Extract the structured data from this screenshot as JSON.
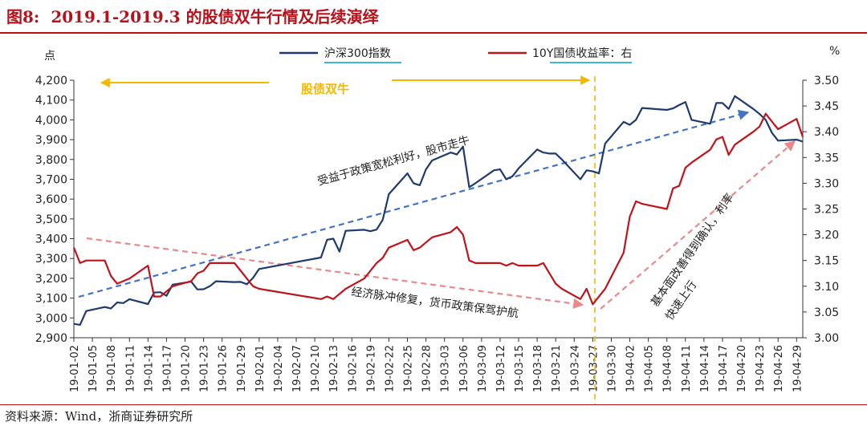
{
  "figure": {
    "label": "图8:",
    "title": "2019.1-2019.3 的股债双牛行情及后续演绎",
    "source": "资料来源：Wind，浙商证券研究所"
  },
  "chart_data": {
    "type": "line",
    "left_unit": "点",
    "right_unit": "%",
    "legend": [
      "沪深300指数",
      "10Y国债收益率：右"
    ],
    "left_axis": {
      "ylim": [
        2900,
        4200
      ],
      "ticks": [
        "2,900",
        "3,000",
        "3,100",
        "3,200",
        "3,300",
        "3,400",
        "3,500",
        "3,600",
        "3,700",
        "3,800",
        "3,900",
        "4,000",
        "4,100",
        "4,200"
      ]
    },
    "right_axis": {
      "ylim": [
        3.0,
        3.5
      ],
      "ticks": [
        "3.00",
        "3.05",
        "3.10",
        "3.15",
        "3.20",
        "3.25",
        "3.30",
        "3.35",
        "3.40",
        "3.45",
        "3.50"
      ]
    },
    "x_ticks": [
      "19-01-02",
      "19-01-05",
      "19-01-08",
      "19-01-11",
      "19-01-14",
      "19-01-17",
      "19-01-20",
      "19-01-23",
      "19-01-26",
      "19-01-29",
      "19-02-01",
      "19-02-04",
      "19-02-07",
      "19-02-10",
      "19-02-13",
      "19-02-16",
      "19-02-19",
      "19-02-22",
      "19-02-25",
      "19-02-28",
      "19-03-03",
      "19-03-06",
      "19-03-09",
      "19-03-12",
      "19-03-15",
      "19-03-18",
      "19-03-21",
      "19-03-24",
      "19-03-27",
      "19-03-30",
      "19-04-02",
      "19-04-05",
      "19-04-08",
      "19-04-11",
      "19-04-14",
      "19-04-17",
      "19-04-20",
      "19-04-23",
      "19-04-26",
      "19-04-29"
    ],
    "series": [
      {
        "name": "沪深300指数",
        "axis": "left",
        "color": "#1f3a6e",
        "x": [
          "19-01-02",
          "19-01-03",
          "19-01-04",
          "19-01-07",
          "19-01-08",
          "19-01-09",
          "19-01-10",
          "19-01-11",
          "19-01-14",
          "19-01-15",
          "19-01-16",
          "19-01-17",
          "19-01-18",
          "19-01-21",
          "19-01-22",
          "19-01-23",
          "19-01-24",
          "19-01-25",
          "19-01-28",
          "19-01-29",
          "19-01-30",
          "19-01-31",
          "19-02-01",
          "19-02-11",
          "19-02-12",
          "19-02-13",
          "19-02-14",
          "19-02-15",
          "19-02-18",
          "19-02-19",
          "19-02-20",
          "19-02-21",
          "19-02-22",
          "19-02-25",
          "19-02-26",
          "19-02-27",
          "19-02-28",
          "19-03-01",
          "19-03-04",
          "19-03-05",
          "19-03-06",
          "19-03-07",
          "19-03-08",
          "19-03-11",
          "19-03-12",
          "19-03-13",
          "19-03-14",
          "19-03-15",
          "19-03-18",
          "19-03-19",
          "19-03-20",
          "19-03-21",
          "19-03-22",
          "19-03-25",
          "19-03-26",
          "19-03-27",
          "19-03-28",
          "19-03-29",
          "19-04-01",
          "19-04-02",
          "19-04-03",
          "19-04-04",
          "19-04-08",
          "19-04-09",
          "19-04-10",
          "19-04-11",
          "19-04-12",
          "19-04-15",
          "19-04-16",
          "19-04-17",
          "19-04-18",
          "19-04-19",
          "19-04-22",
          "19-04-23",
          "19-04-24",
          "19-04-25",
          "19-04-26",
          "19-04-29",
          "19-04-30"
        ],
        "values": [
          2970,
          2965,
          3035,
          3055,
          3048,
          3078,
          3075,
          3095,
          3070,
          3128,
          3130,
          3112,
          3168,
          3183,
          3144,
          3145,
          3160,
          3185,
          3181,
          3182,
          3170,
          3202,
          3247,
          3305,
          3395,
          3400,
          3335,
          3440,
          3445,
          3438,
          3446,
          3495,
          3625,
          3730,
          3680,
          3670,
          3750,
          3795,
          3835,
          3825,
          3865,
          3660,
          3680,
          3745,
          3750,
          3700,
          3715,
          3755,
          3850,
          3835,
          3830,
          3830,
          3800,
          3700,
          3745,
          3740,
          3730,
          3880,
          3990,
          3975,
          4000,
          4060,
          4050,
          4058,
          4075,
          4090,
          4000,
          3980,
          4085,
          4085,
          4055,
          4120,
          4055,
          4030,
          4000,
          3935,
          3895,
          3900,
          3890
        ]
      },
      {
        "name": "10Y国债收益率：右",
        "axis": "right",
        "color": "#c0141c",
        "x": [
          "19-01-02",
          "19-01-03",
          "19-01-04",
          "19-01-07",
          "19-01-08",
          "19-01-09",
          "19-01-10",
          "19-01-11",
          "19-01-14",
          "19-01-15",
          "19-01-16",
          "19-01-17",
          "19-01-18",
          "19-01-21",
          "19-01-22",
          "19-01-23",
          "19-01-24",
          "19-01-25",
          "19-01-28",
          "19-01-29",
          "19-01-30",
          "19-01-31",
          "19-02-01",
          "19-02-11",
          "19-02-12",
          "19-02-13",
          "19-02-14",
          "19-02-15",
          "19-02-18",
          "19-02-19",
          "19-02-20",
          "19-02-21",
          "19-02-22",
          "19-02-25",
          "19-02-26",
          "19-02-27",
          "19-02-28",
          "19-03-01",
          "19-03-04",
          "19-03-05",
          "19-03-06",
          "19-03-07",
          "19-03-08",
          "19-03-11",
          "19-03-12",
          "19-03-13",
          "19-03-14",
          "19-03-15",
          "19-03-18",
          "19-03-19",
          "19-03-20",
          "19-03-21",
          "19-03-22",
          "19-03-25",
          "19-03-26",
          "19-03-27",
          "19-03-28",
          "19-03-29",
          "19-04-01",
          "19-04-02",
          "19-04-03",
          "19-04-04",
          "19-04-08",
          "19-04-09",
          "19-04-10",
          "19-04-11",
          "19-04-12",
          "19-04-15",
          "19-04-16",
          "19-04-17",
          "19-04-18",
          "19-04-19",
          "19-04-22",
          "19-04-23",
          "19-04-24",
          "19-04-25",
          "19-04-26",
          "19-04-29",
          "19-04-30"
        ],
        "values": [
          3.175,
          3.145,
          3.15,
          3.15,
          3.12,
          3.105,
          3.11,
          3.115,
          3.14,
          3.08,
          3.08,
          3.09,
          3.1,
          3.11,
          3.125,
          3.13,
          3.145,
          3.145,
          3.145,
          3.13,
          3.115,
          3.1,
          3.095,
          3.075,
          3.08,
          3.075,
          3.085,
          3.095,
          3.115,
          3.13,
          3.145,
          3.155,
          3.175,
          3.19,
          3.17,
          3.175,
          3.185,
          3.195,
          3.205,
          3.215,
          3.2,
          3.15,
          3.145,
          3.145,
          3.145,
          3.14,
          3.145,
          3.14,
          3.14,
          3.145,
          3.125,
          3.105,
          3.095,
          3.075,
          3.095,
          3.065,
          3.08,
          3.095,
          3.165,
          3.235,
          3.265,
          3.26,
          3.25,
          3.29,
          3.295,
          3.33,
          3.34,
          3.365,
          3.385,
          3.39,
          3.355,
          3.375,
          3.4,
          3.41,
          3.435,
          3.42,
          3.405,
          3.425,
          3.39
        ]
      }
    ],
    "annotations": {
      "bull": "股债双牛",
      "upper_trend": "受益于政策宽松利好，股市走牛",
      "lower_trend": "经济脉冲修复，货币政策保驾护航",
      "right_trend_line1": "基本面改善得到确认，利率",
      "right_trend_line2": "快速上行"
    },
    "colors": {
      "stock": "#1f3a6e",
      "bond": "#c0141c",
      "arrow_blue": "#4472c4",
      "arrow_pink": "#e8898b",
      "bull_orange": "#f5b800",
      "legend_underline": "#3bb8d3"
    },
    "grid": false,
    "legend_position": "top-center"
  }
}
